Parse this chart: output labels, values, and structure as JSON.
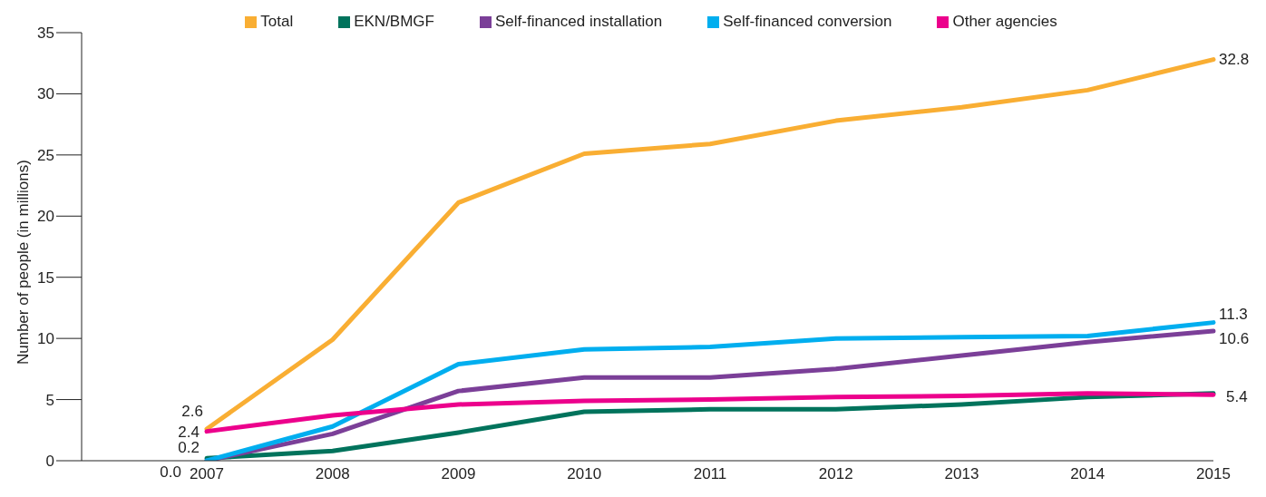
{
  "chart_data": {
    "type": "line",
    "ylabel": "Number of people (in millions)",
    "categories": [
      "2007",
      "2008",
      "2009",
      "2010",
      "2011",
      "2012",
      "2013",
      "2014",
      "2015"
    ],
    "series": [
      {
        "name": "Total",
        "color": "#f9ae33",
        "values": [
          2.6,
          9.9,
          21.1,
          25.1,
          25.9,
          27.8,
          28.9,
          30.3,
          32.8
        ],
        "value_labels": [
          "2.6",
          null,
          null,
          null,
          null,
          null,
          null,
          null,
          "32.8"
        ]
      },
      {
        "name": "EKN/BMGF",
        "color": "#00735c",
        "values": [
          0.2,
          0.8,
          2.3,
          4.0,
          4.2,
          4.2,
          4.6,
          5.2,
          5.5
        ],
        "value_labels": [
          "0.2",
          null,
          null,
          null,
          null,
          null,
          null,
          null,
          null
        ]
      },
      {
        "name": "Self-financed installation",
        "color": "#7b3f98",
        "values": [
          0.0,
          2.2,
          5.7,
          6.8,
          6.8,
          7.5,
          8.6,
          9.7,
          10.6
        ],
        "value_labels": [
          "0.0",
          null,
          null,
          null,
          null,
          null,
          null,
          null,
          "10.6"
        ]
      },
      {
        "name": "Self-financed conversion",
        "color": "#00aeef",
        "values": [
          0.0,
          2.8,
          7.9,
          9.1,
          9.3,
          10.0,
          10.1,
          10.2,
          11.3
        ],
        "value_labels": [
          null,
          null,
          null,
          null,
          null,
          null,
          null,
          null,
          "11.3"
        ]
      },
      {
        "name": "Other agencies",
        "color": "#ec008c",
        "values": [
          2.4,
          3.7,
          4.6,
          4.9,
          5.0,
          5.2,
          5.3,
          5.5,
          5.4
        ],
        "value_labels": [
          "2.4",
          null,
          null,
          null,
          null,
          null,
          null,
          null,
          "5.4"
        ]
      }
    ],
    "ylim": [
      0,
      35
    ],
    "yticks": [
      0,
      5,
      10,
      15,
      20,
      25,
      30,
      35
    ],
    "grid": false,
    "legend": "top",
    "marker": "none",
    "line_style": "solid"
  }
}
